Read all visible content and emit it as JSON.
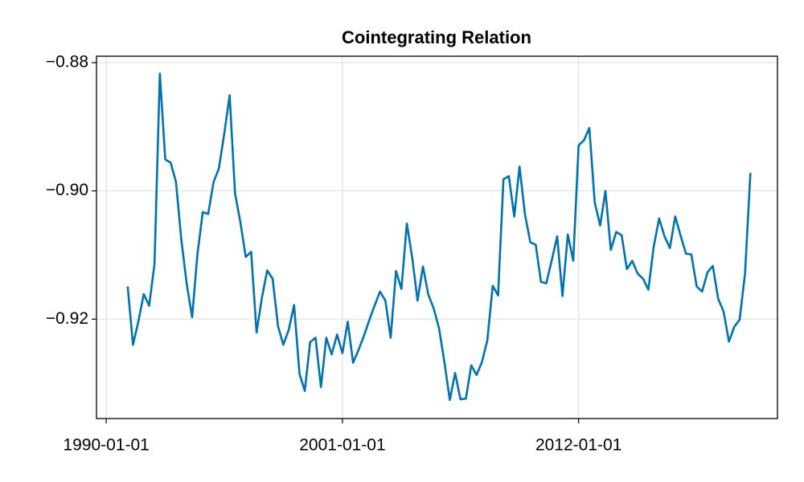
{
  "chart_data": {
    "type": "line",
    "title": "Cointegrating Relation",
    "x": [
      "1991-01-01",
      "1991-04-01",
      "1991-07-01",
      "1991-10-01",
      "1992-01-01",
      "1992-04-01",
      "1992-07-01",
      "1992-10-01",
      "1993-01-01",
      "1993-04-01",
      "1993-07-01",
      "1993-10-01",
      "1994-01-01",
      "1994-04-01",
      "1994-07-01",
      "1994-10-01",
      "1995-01-01",
      "1995-04-01",
      "1995-07-01",
      "1995-10-01",
      "1996-01-01",
      "1996-04-01",
      "1996-07-01",
      "1996-10-01",
      "1997-01-01",
      "1997-04-01",
      "1997-07-01",
      "1997-10-01",
      "1998-01-01",
      "1998-04-01",
      "1998-07-01",
      "1998-10-01",
      "1999-01-01",
      "1999-04-01",
      "1999-07-01",
      "1999-10-01",
      "2000-01-01",
      "2000-04-01",
      "2000-07-01",
      "2000-10-01",
      "2001-01-01",
      "2001-04-01",
      "2001-07-01",
      "2001-10-01",
      "2002-01-01",
      "2002-04-01",
      "2002-07-01",
      "2002-10-01",
      "2003-01-01",
      "2003-04-01",
      "2003-07-01",
      "2003-10-01",
      "2004-01-01",
      "2004-04-01",
      "2004-07-01",
      "2004-10-01",
      "2005-01-01",
      "2005-04-01",
      "2005-07-01",
      "2005-10-01",
      "2006-01-01",
      "2006-04-01",
      "2006-07-01",
      "2006-10-01",
      "2007-01-01",
      "2007-04-01",
      "2007-07-01",
      "2007-10-01",
      "2008-01-01",
      "2008-04-01",
      "2008-07-01",
      "2008-10-01",
      "2009-01-01",
      "2009-04-01",
      "2009-07-01",
      "2009-10-01",
      "2010-01-01",
      "2010-04-01",
      "2010-07-01",
      "2010-10-01",
      "2011-01-01",
      "2011-04-01",
      "2011-07-01",
      "2011-10-01",
      "2012-01-01",
      "2012-04-01",
      "2012-07-01",
      "2012-10-01",
      "2013-01-01",
      "2013-04-01",
      "2013-07-01",
      "2013-10-01",
      "2014-01-01",
      "2014-04-01",
      "2014-07-01",
      "2014-10-01",
      "2015-01-01",
      "2015-04-01",
      "2015-07-01",
      "2015-10-01",
      "2016-01-01",
      "2016-04-01",
      "2016-07-01",
      "2016-10-01",
      "2017-01-01",
      "2017-04-01",
      "2017-07-01",
      "2017-10-01",
      "2018-01-01",
      "2018-04-01",
      "2018-07-01",
      "2018-10-01",
      "2019-01-01",
      "2019-04-01",
      "2019-07-01",
      "2019-10-01",
      "2020-01-01"
    ],
    "values": [
      -0.9149,
      -0.924,
      -0.9204,
      -0.9161,
      -0.9179,
      -0.9114,
      -0.8817,
      -0.8951,
      -0.8956,
      -0.8986,
      -0.9076,
      -0.9145,
      -0.9197,
      -0.9099,
      -0.9033,
      -0.9036,
      -0.8986,
      -0.8965,
      -0.8911,
      -0.8851,
      -0.9004,
      -0.9049,
      -0.9103,
      -0.9095,
      -0.9221,
      -0.9167,
      -0.9124,
      -0.9137,
      -0.9211,
      -0.924,
      -0.9217,
      -0.9178,
      -0.9285,
      -0.9312,
      -0.9236,
      -0.9229,
      -0.9306,
      -0.9229,
      -0.9255,
      -0.9224,
      -0.9253,
      -0.9204,
      -0.9268,
      -0.9248,
      -0.9226,
      -0.9202,
      -0.9179,
      -0.9157,
      -0.9171,
      -0.9229,
      -0.9125,
      -0.9153,
      -0.9051,
      -0.9104,
      -0.9171,
      -0.9118,
      -0.9162,
      -0.9183,
      -0.9214,
      -0.9267,
      -0.9326,
      -0.9284,
      -0.9325,
      -0.9324,
      -0.9272,
      -0.9287,
      -0.9267,
      -0.9233,
      -0.9148,
      -0.9163,
      -0.8982,
      -0.8977,
      -0.904,
      -0.8962,
      -0.9036,
      -0.908,
      -0.9084,
      -0.9142,
      -0.9144,
      -0.9108,
      -0.9071,
      -0.9164,
      -0.9068,
      -0.9109,
      -0.8929,
      -0.8921,
      -0.8902,
      -0.9018,
      -0.9054,
      -0.9,
      -0.9092,
      -0.9064,
      -0.9069,
      -0.9122,
      -0.9109,
      -0.9129,
      -0.9137,
      -0.9154,
      -0.9087,
      -0.9043,
      -0.9071,
      -0.9089,
      -0.904,
      -0.907,
      -0.9098,
      -0.9099,
      -0.9149,
      -0.9157,
      -0.9127,
      -0.9117,
      -0.9168,
      -0.9188,
      -0.9235,
      -0.9212,
      -0.9201,
      -0.9129,
      -0.8972
    ],
    "color": "#0072b2",
    "xlim": [
      "1989-07-19",
      "2021-04-05"
    ],
    "xticks": [
      "1990-01-01",
      "2001-01-01",
      "2012-01-01"
    ],
    "ylim": [
      -0.9355,
      -0.879
    ],
    "yticks": [
      {
        "value": -0.88,
        "label": "−0.88"
      },
      {
        "value": -0.9,
        "label": "−0.90"
      },
      {
        "value": -0.92,
        "label": "−0.92"
      }
    ],
    "grid": true
  }
}
